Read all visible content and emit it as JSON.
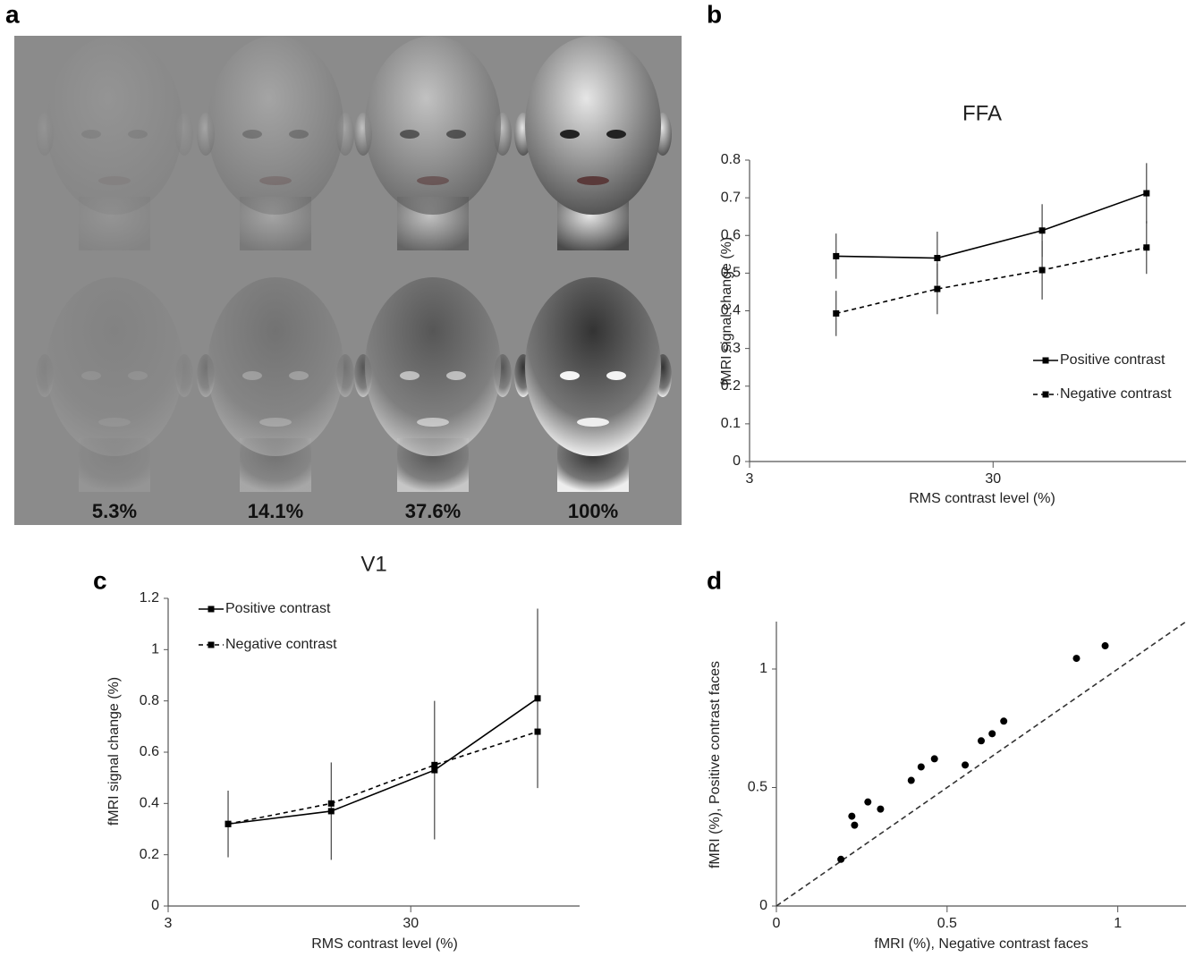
{
  "panel_letters": [
    "a",
    "b",
    "c",
    "d"
  ],
  "image_panel": {
    "labels": [
      "5.3%",
      "14.1%",
      "37.6%",
      "100%"
    ]
  },
  "chart_data": [
    {
      "type": "line",
      "title": "FFA",
      "xlabel": "RMS contrast level (%)",
      "ylabel": "fMRI signal change (%)",
      "xscale": "log",
      "xlim": [
        3,
        186
      ],
      "xticks": [
        3,
        30
      ],
      "ylim": [
        0,
        0.8
      ],
      "yticks": [
        0,
        0.1,
        0.2,
        0.3,
        0.4,
        0.5,
        0.6,
        0.7,
        0.8
      ],
      "x": [
        6.8,
        17.7,
        47.7,
        128
      ],
      "series": [
        {
          "name": "Positive contrast",
          "color": "#000000",
          "line_style": "solid",
          "values": [
            0.545,
            0.54,
            0.613,
            0.712
          ],
          "errors": [
            0.06,
            0.07,
            0.07,
            0.08
          ]
        },
        {
          "name": "Negative contrast",
          "color": "#000000",
          "line_style": "dashed",
          "values": [
            0.393,
            0.458,
            0.508,
            0.568
          ],
          "errors": [
            0.06,
            0.067,
            0.078,
            0.07
          ]
        }
      ]
    },
    {
      "type": "line",
      "title": "V1",
      "xlabel": "RMS contrast level (%)",
      "ylabel": "fMRI signal change (%)",
      "xscale": "log",
      "xlim": [
        3,
        149
      ],
      "xticks": [
        3,
        30
      ],
      "ylim": [
        0,
        1.2
      ],
      "yticks": [
        0,
        0.2,
        0.4,
        0.6,
        0.8,
        1,
        1.2
      ],
      "x": [
        5.3,
        14.1,
        37.6,
        100
      ],
      "series": [
        {
          "name": "Positive contrast",
          "color": "#000000",
          "line_style": "solid",
          "values": [
            0.32,
            0.37,
            0.53,
            0.81
          ],
          "errors": [
            0.13,
            0.19,
            0.27,
            0.35
          ]
        },
        {
          "name": "Negative contrast",
          "color": "#000000",
          "line_style": "dashed",
          "values": [
            0.32,
            0.4,
            0.55,
            0.68
          ]
        }
      ]
    },
    {
      "type": "scatter",
      "xlabel": "fMRI (%), Negative contrast faces",
      "ylabel": "fMRI (%), Positive contrast faces",
      "xlim": [
        0,
        1.2
      ],
      "xticks": [
        0,
        0.5,
        1
      ],
      "ylim": [
        0,
        1.2
      ],
      "yticks": [
        0,
        0.5,
        1
      ],
      "identity_line": true,
      "color": "#000000",
      "x": [
        0.189,
        0.221,
        0.229,
        0.268,
        0.305,
        0.395,
        0.424,
        0.463,
        0.553,
        0.6,
        0.632,
        0.666,
        0.879,
        0.963
      ],
      "values": [
        0.197,
        0.379,
        0.341,
        0.439,
        0.409,
        0.53,
        0.587,
        0.621,
        0.595,
        0.697,
        0.727,
        0.78,
        1.045,
        1.098
      ]
    }
  ]
}
